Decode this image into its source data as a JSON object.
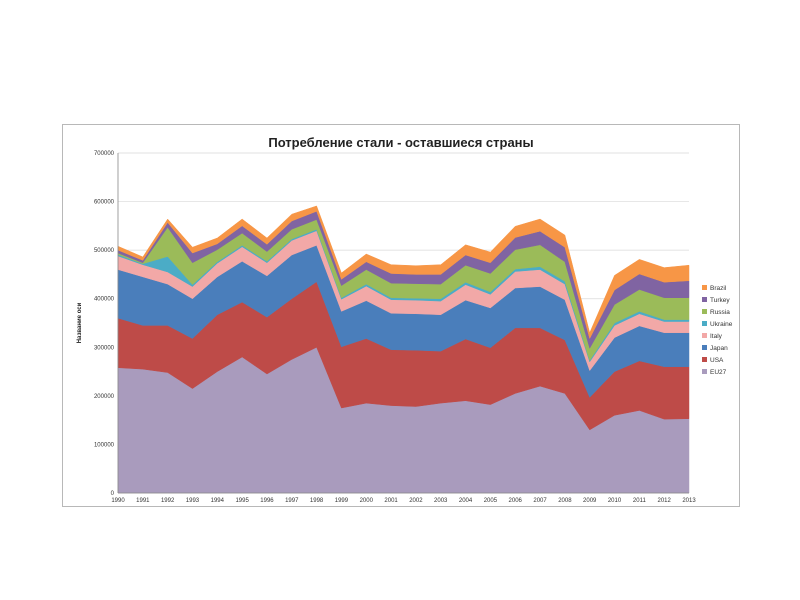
{
  "chart_data": {
    "type": "area",
    "stacked": true,
    "title": "Потребление стали - оставшиеся страны",
    "ylabel": "Название оси",
    "xlabel": "",
    "ylim": [
      0,
      700000
    ],
    "yticks": [
      0,
      100000,
      200000,
      300000,
      400000,
      500000,
      600000,
      700000
    ],
    "grid": true,
    "legend_position": "right",
    "categories": [
      "1990",
      "1991",
      "1992",
      "1993",
      "1994",
      "1995",
      "1996",
      "1997",
      "1998",
      "1999",
      "2000",
      "2001",
      "2002",
      "2003",
      "2004",
      "2005",
      "2006",
      "2007",
      "2008",
      "2009",
      "2010",
      "2011",
      "2012",
      "2013"
    ],
    "series": [
      {
        "name": "EU27",
        "color": "#a99bbd",
        "values": [
          258000,
          255000,
          248000,
          215000,
          250000,
          280000,
          245000,
          275000,
          300000,
          175000,
          185000,
          180000,
          178000,
          185000,
          190000,
          182000,
          205000,
          220000,
          205000,
          130000,
          160000,
          170000,
          152000,
          153000
        ]
      },
      {
        "name": "USA",
        "color": "#be4b48",
        "values": [
          102000,
          90000,
          97000,
          103000,
          117000,
          113000,
          117000,
          125000,
          135000,
          126000,
          133000,
          115000,
          116000,
          107000,
          127000,
          117000,
          135000,
          120000,
          110000,
          67000,
          90000,
          102000,
          108000,
          107000
        ]
      },
      {
        "name": "Japan",
        "color": "#4a7ebb",
        "values": [
          100000,
          100000,
          85000,
          82000,
          78000,
          84000,
          85000,
          90000,
          75000,
          73000,
          78000,
          75000,
          75000,
          75000,
          80000,
          82000,
          82000,
          85000,
          83000,
          55000,
          70000,
          72000,
          70000,
          70000
        ]
      },
      {
        "name": "Italy",
        "color": "#f2a8a7",
        "values": [
          28000,
          25000,
          25000,
          25000,
          28000,
          30000,
          27000,
          30000,
          30000,
          25000,
          30000,
          28000,
          28000,
          28000,
          32000,
          28000,
          34000,
          35000,
          32000,
          18000,
          25000,
          25000,
          23000,
          23000
        ]
      },
      {
        "name": "Ukraine",
        "color": "#4bacc6",
        "values": [
          3000,
          2000,
          32000,
          4000,
          3000,
          3000,
          3000,
          3000,
          3000,
          3000,
          4000,
          4000,
          4000,
          5000,
          5000,
          5000,
          5000,
          6000,
          6000,
          3000,
          5000,
          5000,
          4000,
          4000
        ]
      },
      {
        "name": "Russia",
        "color": "#9bbb59",
        "values": [
          3000,
          2000,
          60000,
          45000,
          25000,
          25000,
          20000,
          20000,
          20000,
          25000,
          30000,
          30000,
          30000,
          30000,
          35000,
          38000,
          40000,
          45000,
          40000,
          25000,
          38000,
          45000,
          45000,
          45000
        ]
      },
      {
        "name": "Turkey",
        "color": "#8064a2",
        "values": [
          6000,
          5000,
          10000,
          20000,
          12000,
          15000,
          15000,
          17000,
          17000,
          13000,
          16000,
          20000,
          19000,
          20000,
          21000,
          22000,
          25000,
          28000,
          30000,
          20000,
          30000,
          32000,
          32000,
          35000
        ]
      },
      {
        "name": "Brazil",
        "color": "#f79646",
        "values": [
          8000,
          7000,
          7000,
          12000,
          12000,
          14000,
          13000,
          14000,
          11000,
          13000,
          16000,
          18000,
          18000,
          20000,
          21000,
          22000,
          23000,
          25000,
          25000,
          12000,
          30000,
          30000,
          30000,
          32000
        ]
      }
    ]
  }
}
